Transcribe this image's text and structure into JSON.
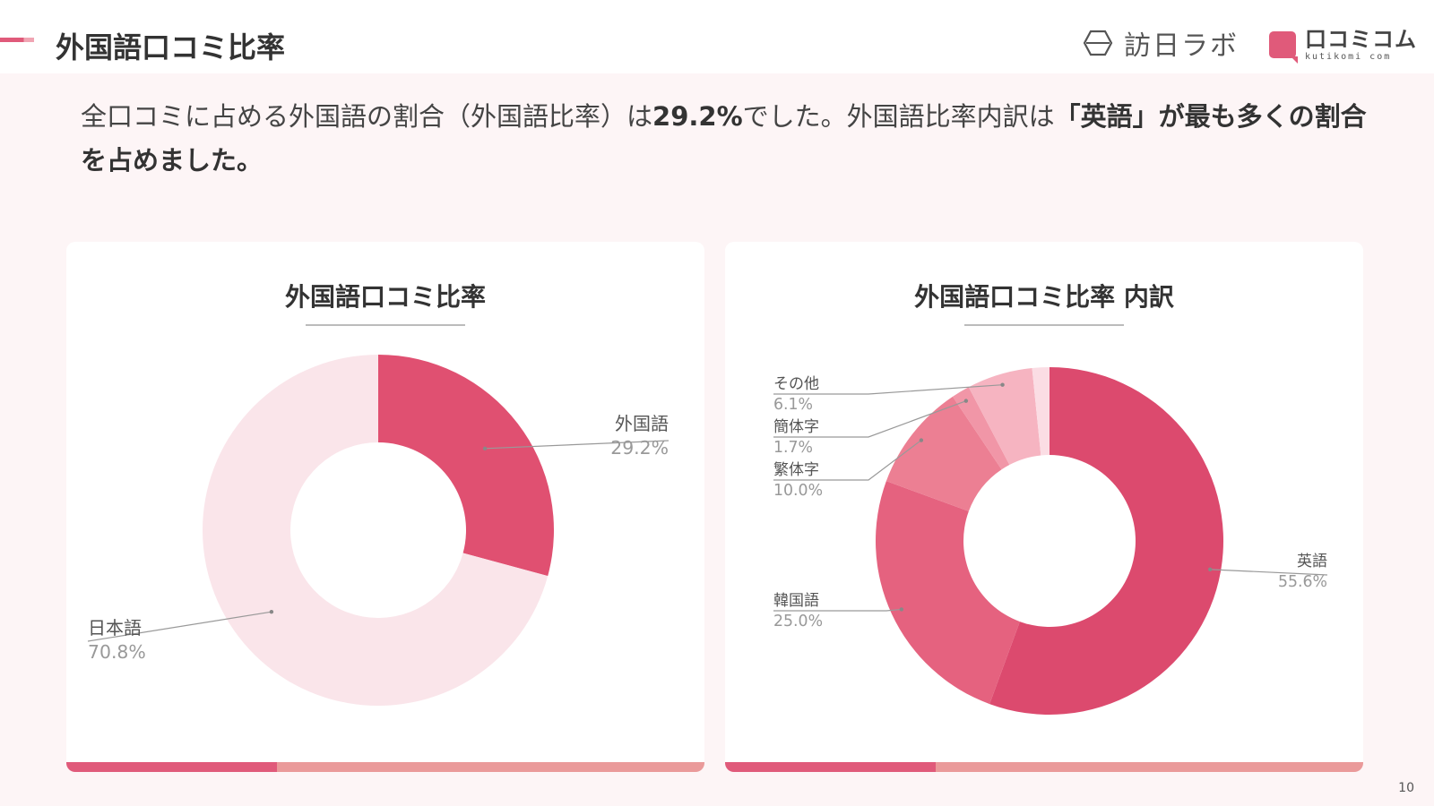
{
  "header": {
    "title": "外国語口コミ比率",
    "logo1": "訪日ラボ",
    "logo2_main": "口コミコム",
    "logo2_sub": "kutikomi com"
  },
  "summary": {
    "part1": "全口コミに占める外国語の割合（外国語比率）は",
    "highlight1": "29.2%",
    "part2": "でした。外国語比率内訳は",
    "highlight2": "「英語」が最も多くの割合を占めました。"
  },
  "colors": {
    "accent": "#e05a7a",
    "accent_light": "#ea9a9a",
    "background": "#fdf5f6"
  },
  "chart_data": [
    {
      "type": "pie",
      "title": "外国語口コミ比率",
      "donut": true,
      "legend": "none",
      "slices": [
        {
          "label": "外国語",
          "value": 29.2,
          "display": "29.2%",
          "color": "#e05071"
        },
        {
          "label": "日本語",
          "value": 70.8,
          "display": "70.8%",
          "color": "#fae5ea"
        }
      ]
    },
    {
      "type": "pie",
      "title": "外国語口コミ比率 内訳",
      "donut": true,
      "legend": "none",
      "slices": [
        {
          "label": "英語",
          "value": 55.6,
          "display": "55.6%",
          "color": "#dc4a6e"
        },
        {
          "label": "韓国語",
          "value": 25.0,
          "display": "25.0%",
          "color": "#e5627f"
        },
        {
          "label": "繁体字",
          "value": 10.0,
          "display": "10.0%",
          "color": "#ec7f93"
        },
        {
          "label": "簡体字",
          "value": 1.7,
          "display": "1.7%",
          "color": "#f196a7"
        },
        {
          "label": "その他",
          "value": 6.1,
          "display": "6.1%",
          "color": "#f6b4c1"
        },
        {
          "label": "",
          "value": 1.6,
          "display": "",
          "color": "#fbdde4"
        }
      ]
    }
  ],
  "page_number": "10"
}
